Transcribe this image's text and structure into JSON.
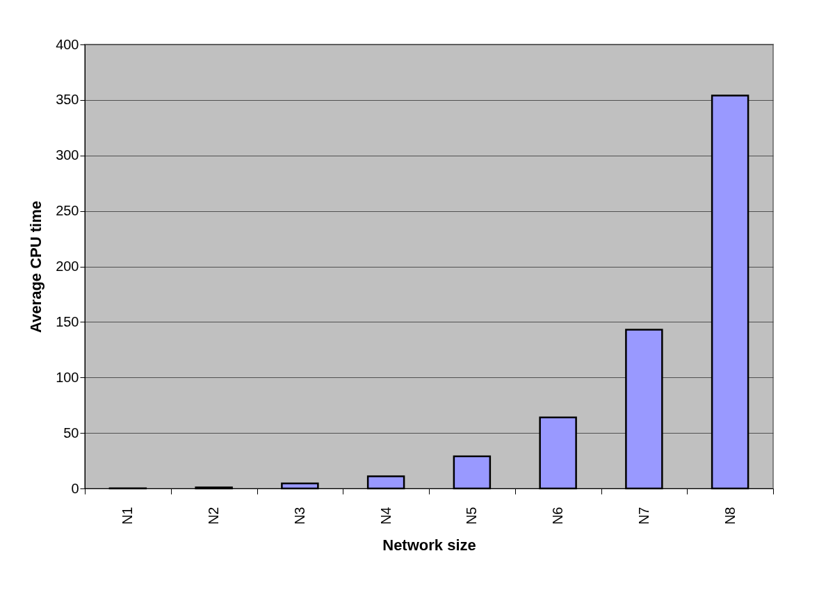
{
  "chart_data": {
    "type": "bar",
    "xlabel": "Network size",
    "ylabel": "Average CPU time",
    "categories": [
      "N1",
      "N2",
      "N3",
      "N4",
      "N5",
      "N6",
      "N7",
      "N8"
    ],
    "values": [
      0.2,
      1,
      4.5,
      11,
      29,
      64,
      143,
      354
    ],
    "color": "#9999ff",
    "ylim": [
      0,
      400
    ],
    "yticks": [
      0,
      50,
      100,
      150,
      200,
      250,
      300,
      350,
      400
    ],
    "grid": "y"
  }
}
